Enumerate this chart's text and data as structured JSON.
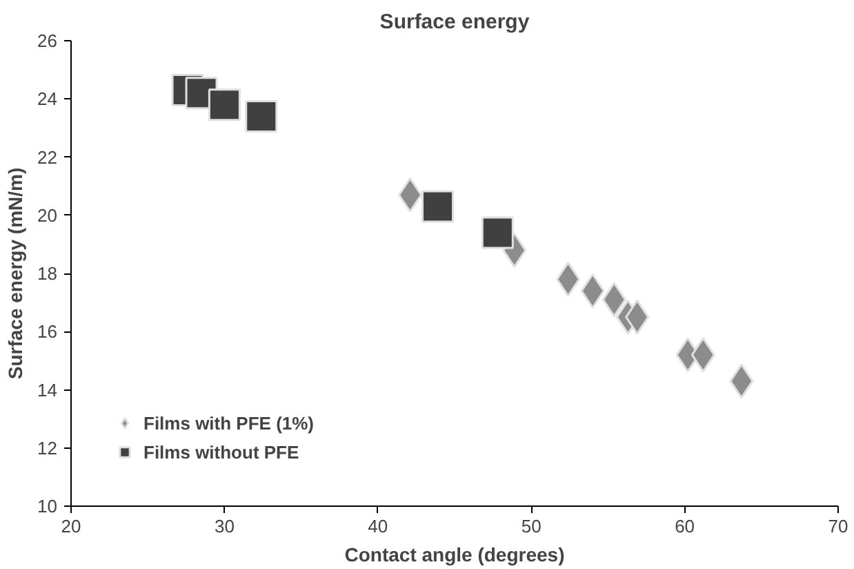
{
  "chart_data": {
    "type": "scatter",
    "title": "Surface energy",
    "xlabel": "Contact angle (degrees)",
    "ylabel": "Surface energy (mN/m)",
    "xlim": [
      20,
      70
    ],
    "xticks": [
      20,
      30,
      40,
      50,
      60,
      70
    ],
    "ylim": [
      10,
      26
    ],
    "yticks": [
      10,
      12,
      14,
      16,
      18,
      20,
      22,
      24,
      26
    ],
    "grid": false,
    "legend": "bottom left",
    "series": [
      {
        "name": "Films with PFE (1%)",
        "color": "#8c8c8c",
        "marker": "diamond",
        "x": [
          42.1,
          48.9,
          52.4,
          54.0,
          55.4,
          56.3,
          56.9,
          60.2,
          61.2,
          63.7
        ],
        "values": [
          20.7,
          18.8,
          17.8,
          17.4,
          17.1,
          16.5,
          16.5,
          15.2,
          15.2,
          14.3
        ]
      },
      {
        "name": "Films without PFE",
        "color": "#404040",
        "marker": "square",
        "x": [
          27.6,
          28.5,
          30.0,
          32.4,
          43.9,
          47.8
        ],
        "values": [
          24.3,
          24.2,
          23.8,
          23.4,
          20.3,
          19.4
        ]
      }
    ]
  }
}
